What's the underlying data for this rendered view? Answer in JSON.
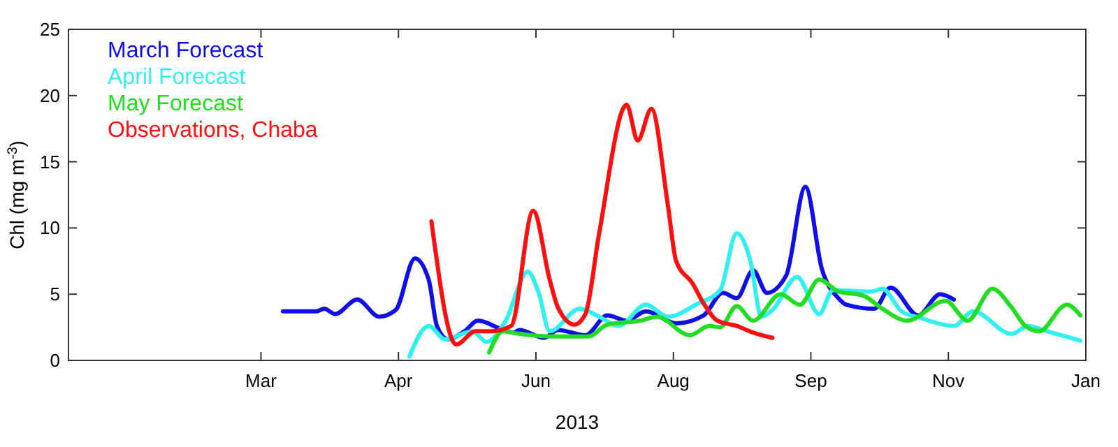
{
  "chart_data": {
    "type": "line",
    "xlabel": "2013",
    "ylabel": "Chl (mg m$^{-3}$)",
    "xlim": [
      "2012-12-27",
      "2014-01-01"
    ],
    "xticks": [
      {
        "value": "2013-03-07",
        "label": "Mar"
      },
      {
        "value": "2013-04-26",
        "label": "Apr"
      },
      {
        "value": "2013-06-15",
        "label": "Jun"
      },
      {
        "value": "2013-08-04",
        "label": "Aug"
      },
      {
        "value": "2013-09-23",
        "label": "Sep"
      },
      {
        "value": "2013-11-12",
        "label": "Nov"
      },
      {
        "value": "2014-01-01",
        "label": "Jan"
      }
    ],
    "ylim": [
      0,
      25
    ],
    "yticks": [
      0,
      5,
      10,
      15,
      20,
      25
    ],
    "grid": false,
    "legend": "top left",
    "marker": "none",
    "line_style": "solid",
    "series": [
      {
        "name": "March Forecast",
        "color": "#1010e6",
        "x": [
          "2013-03-15",
          "2013-03-27",
          "2013-03-30",
          "2013-04-03",
          "2013-04-11",
          "2013-04-19",
          "2013-04-25",
          "2013-05-02",
          "2013-05-07",
          "2013-05-10",
          "2013-05-14",
          "2013-05-20",
          "2013-05-25",
          "2013-06-02",
          "2013-06-07",
          "2013-06-09",
          "2013-06-18",
          "2013-06-23",
          "2013-07-03",
          "2013-07-11",
          "2013-07-18",
          "2013-07-25",
          "2013-08-05",
          "2013-08-15",
          "2013-08-22",
          "2013-08-27",
          "2013-09-02",
          "2013-09-07",
          "2013-09-14",
          "2013-09-21",
          "2013-09-27",
          "2013-10-03",
          "2013-10-06",
          "2013-10-16",
          "2013-10-22",
          "2013-11-01",
          "2013-11-09",
          "2013-11-14"
        ],
        "values": [
          3.7,
          3.7,
          3.9,
          3.5,
          4.6,
          3.3,
          3.8,
          7.7,
          6.1,
          2.6,
          1.6,
          2.2,
          3.0,
          2.4,
          2.1,
          2.3,
          1.7,
          2.3,
          1.9,
          3.4,
          3.0,
          3.7,
          2.8,
          3.4,
          5.1,
          4.7,
          6.8,
          5.1,
          6.4,
          13.1,
          6.9,
          4.7,
          4.2,
          3.9,
          5.5,
          3.4,
          5.0,
          4.6
        ]
      },
      {
        "name": "April Forecast",
        "color": "#33f0f0",
        "x": [
          "2013-04-30",
          "2013-05-07",
          "2013-05-13",
          "2013-05-23",
          "2013-05-28",
          "2013-06-04",
          "2013-06-12",
          "2013-06-16",
          "2013-06-20",
          "2013-07-01",
          "2013-07-08",
          "2013-07-15",
          "2013-07-25",
          "2013-08-02",
          "2013-08-13",
          "2013-08-21",
          "2013-08-27",
          "2013-09-01",
          "2013-09-05",
          "2013-09-09",
          "2013-09-18",
          "2013-09-26",
          "2013-10-01",
          "2013-10-15",
          "2013-10-19",
          "2013-10-26",
          "2013-11-02",
          "2013-11-14",
          "2013-11-21",
          "2013-12-05",
          "2013-12-11",
          "2013-12-18",
          "2013-12-30"
        ],
        "values": [
          0.3,
          2.6,
          1.6,
          2.2,
          1.4,
          3.0,
          6.7,
          5.1,
          2.2,
          3.9,
          3.3,
          2.6,
          4.2,
          3.3,
          4.3,
          5.3,
          9.6,
          7.5,
          3.3,
          3.8,
          6.3,
          3.5,
          5.3,
          5.2,
          5.4,
          3.7,
          3.2,
          2.6,
          3.7,
          2.0,
          2.6,
          2.2,
          1.5
        ]
      },
      {
        "name": "May Forecast",
        "color": "#22dd22",
        "x": [
          "2013-05-29",
          "2013-06-03",
          "2013-06-09",
          "2013-06-23",
          "2013-07-04",
          "2013-07-11",
          "2013-07-23",
          "2013-07-29",
          "2013-08-10",
          "2013-08-17",
          "2013-08-21",
          "2013-08-27",
          "2013-09-02",
          "2013-09-12",
          "2013-09-19",
          "2013-09-26",
          "2013-10-03",
          "2013-10-12",
          "2013-10-19",
          "2013-10-28",
          "2013-11-11",
          "2013-11-19",
          "2013-11-28",
          "2013-12-05",
          "2013-12-10",
          "2013-12-15",
          "2013-12-25",
          "2013-12-30"
        ],
        "values": [
          0.6,
          2.2,
          2.0,
          1.8,
          1.8,
          2.7,
          3.0,
          3.3,
          1.9,
          2.6,
          2.5,
          4.1,
          3.0,
          5.0,
          4.2,
          6.1,
          5.2,
          4.9,
          3.9,
          3.0,
          4.5,
          3.0,
          5.4,
          4.0,
          2.6,
          2.2,
          4.2,
          3.4
        ]
      },
      {
        "name": "Observations, Chaba",
        "color": "#ff1010",
        "x": [
          "2013-05-08",
          "2013-05-17",
          "2013-05-24",
          "2013-05-30",
          "2013-06-06",
          "2013-06-14",
          "2013-06-20",
          "2013-06-23",
          "2013-06-29",
          "2013-07-03",
          "2013-07-08",
          "2013-07-18",
          "2013-07-22",
          "2013-07-27",
          "2013-08-02",
          "2013-08-05",
          "2013-08-11",
          "2013-08-15",
          "2013-08-20",
          "2013-08-27",
          "2013-09-02",
          "2013-09-09"
        ],
        "values": [
          10.5,
          1.2,
          2.2,
          2.2,
          2.6,
          11.3,
          6.1,
          4.0,
          2.7,
          3.5,
          9.6,
          19.3,
          16.6,
          19.0,
          11.7,
          7.5,
          5.8,
          4.3,
          3.0,
          2.6,
          2.1,
          1.7
        ]
      }
    ]
  }
}
